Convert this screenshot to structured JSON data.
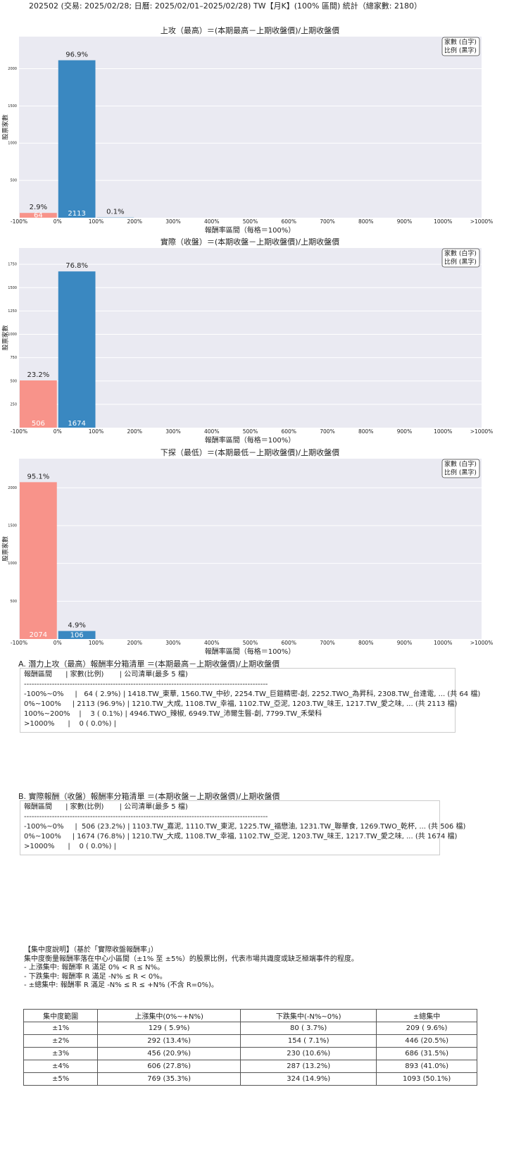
{
  "header": {
    "title": "202502 (交易: 2025/02/28; 日曆: 2025/02/01–2025/02/28) TW【月K】(100% 區間) 統計（總家數: 2180）"
  },
  "chart_data": [
    {
      "type": "histogram",
      "title": "上攻（最高）＝(本期最高－上期收盤價)/上期收盤價",
      "xlabel": "報酬率區間（每格＝100%）",
      "ylabel": "股票家數",
      "bins": [
        "-100%",
        "0%",
        "100%",
        "200%",
        "300%",
        "400%",
        "500%",
        "600%",
        "700%",
        "800%",
        "900%",
        "1000%",
        ">1000%"
      ],
      "values": [
        64,
        2113,
        3,
        0,
        0,
        0,
        0,
        0,
        0,
        0,
        0,
        0
      ],
      "share_labels": [
        "2.9%",
        "96.9%",
        "0.1%",
        null,
        null,
        null,
        null,
        null,
        null,
        null,
        null,
        null
      ],
      "colors": [
        "#f8938a",
        "#3a88c1",
        "#3a88c1",
        "#3a88c1",
        "#3a88c1",
        "#3a88c1",
        "#3a88c1",
        "#3a88c1",
        "#3a88c1",
        "#3a88c1",
        "#3a88c1",
        "#3a88c1"
      ],
      "ylim": [
        0,
        2430
      ],
      "yticks": [
        500,
        1000,
        1500,
        2000
      ],
      "grid": true,
      "legend": [
        "家數 (白字)",
        "比例 (黑字)"
      ],
      "legend_loc": "upper right"
    },
    {
      "type": "histogram",
      "title": "實際（收盤）＝(本期收盤－上期收盤價)/上期收盤價",
      "xlabel": "報酬率區間（每格＝100%）",
      "ylabel": "股票家數",
      "bins": [
        "-100%",
        "0%",
        "100%",
        "200%",
        "300%",
        "400%",
        "500%",
        "600%",
        "700%",
        "800%",
        "900%",
        "1000%",
        ">1000%"
      ],
      "values": [
        506,
        1674,
        0,
        0,
        0,
        0,
        0,
        0,
        0,
        0,
        0,
        0
      ],
      "share_labels": [
        "23.2%",
        "76.8%",
        null,
        null,
        null,
        null,
        null,
        null,
        null,
        null,
        null,
        null
      ],
      "colors": [
        "#f8938a",
        "#3a88c1",
        "#3a88c1",
        "#3a88c1",
        "#3a88c1",
        "#3a88c1",
        "#3a88c1",
        "#3a88c1",
        "#3a88c1",
        "#3a88c1",
        "#3a88c1",
        "#3a88c1"
      ],
      "ylim": [
        0,
        1925
      ],
      "yticks": [
        250,
        500,
        750,
        1000,
        1250,
        1500,
        1750
      ],
      "grid": true,
      "legend": [
        "家數 (白字)",
        "比例 (黑字)"
      ],
      "legend_loc": "upper right"
    },
    {
      "type": "histogram",
      "title": "下探（最低）＝(本期最低－上期收盤價)/上期收盤價",
      "xlabel": "報酬率區間（每格＝100%）",
      "ylabel": "股票家數",
      "bins": [
        "-100%",
        "0%",
        "100%",
        "200%",
        "300%",
        "400%",
        "500%",
        "600%",
        "700%",
        "800%",
        "900%",
        "1000%",
        ">1000%"
      ],
      "values": [
        2074,
        106,
        0,
        0,
        0,
        0,
        0,
        0,
        0,
        0,
        0,
        0
      ],
      "share_labels": [
        "95.1%",
        "4.9%",
        null,
        null,
        null,
        null,
        null,
        null,
        null,
        null,
        null,
        null
      ],
      "colors": [
        "#f8938a",
        "#3a88c1",
        "#3a88c1",
        "#3a88c1",
        "#3a88c1",
        "#3a88c1",
        "#3a88c1",
        "#3a88c1",
        "#3a88c1",
        "#3a88c1",
        "#3a88c1",
        "#3a88c1"
      ],
      "ylim": [
        0,
        2385
      ],
      "yticks": [
        500,
        1000,
        1500,
        2000
      ],
      "grid": true,
      "legend": [
        "家數 (白字)",
        "比例 (黑字)"
      ],
      "legend_loc": "upper right"
    }
  ],
  "listing_a": {
    "title": "A. 潛力上攻（最高）報酬率分箱清單 ＝(本期最高－上期收盤價)/上期收盤價",
    "lines": [
      "報酬區間      | 家數(比例)       | 公司清單(最多 5 檔)",
      "------------------------------------------------------------------------------------------------",
      "-100%~0%     |   64 ( 2.9%) | 1418.TW_東華, 1560.TW_中砂, 2254.TW_巨鎧精密-創, 2252.TWO_為昇科, 2308.TW_台達電, ... (共 64 檔)",
      "0%~100%     | 2113 (96.9%) | 1210.TW_大成, 1108.TW_幸福, 1102.TW_亞泥, 1203.TW_味王, 1217.TW_愛之味, ... (共 2113 檔)",
      "100%~200%    |    3 ( 0.1%) | 4946.TWO_辣椒, 6949.TW_沛爾生醫-創, 7799.TW_禾榮科",
      ">1000%      |    0 ( 0.0%) |"
    ]
  },
  "listing_b": {
    "title": "B. 實際報酬（收盤）報酬率分箱清單 ＝(本期收盤－上期收盤價)/上期收盤價",
    "lines": [
      "報酬區間      | 家數(比例)       | 公司清單(最多 5 檔)",
      "------------------------------------------------------------------------------------------------",
      "-100%~0%     |  506 (23.2%) | 1103.TW_嘉泥, 1110.TW_東泥, 1225.TW_福懋油, 1231.TW_聯華食, 1269.TWO_乾杯, ... (共 506 檔)",
      "0%~100%     | 1674 (76.8%) | 1210.TW_大成, 1108.TW_幸福, 1102.TW_亞泥, 1203.TW_味王, 1217.TW_愛之味, ... (共 1674 檔)",
      ">1000%      |    0 ( 0.0%) |"
    ]
  },
  "concentration": {
    "lines": [
      "【集中度說明】（基於「實際收盤報酬率」）",
      "集中度衡量報酬率落在中心小區間（±1% 至 ±5%）的股票比例，代表市場共識度或缺乏極端事件的程度。",
      "- 上漲集中: 報酬率 R 滿足 0% < R ≤ N%。",
      "- 下跌集中: 報酬率 R 滿足 -N% ≤ R < 0%。",
      "- ±總集中: 報酬率 R 滿足 -N% ≤ R ≤ +N% (不含 R=0%)。"
    ],
    "table": {
      "header": [
        "集中度範圍",
        "上漲集中(0%~+N%)",
        "下跌集中(-N%~0%)",
        "±總集中"
      ],
      "rows": [
        [
          "±1%",
          "129 ( 5.9%)",
          "80 ( 3.7%)",
          "209 ( 9.6%)"
        ],
        [
          "±2%",
          "292 (13.4%)",
          "154 ( 7.1%)",
          "446 (20.5%)"
        ],
        [
          "±3%",
          "456 (20.9%)",
          "230 (10.6%)",
          "686 (31.5%)"
        ],
        [
          "±4%",
          "606 (27.8%)",
          "287 (13.2%)",
          "893 (41.0%)"
        ],
        [
          "±5%",
          "769 (35.3%)",
          "324 (14.9%)",
          "1093 (50.1%)"
        ]
      ]
    }
  }
}
